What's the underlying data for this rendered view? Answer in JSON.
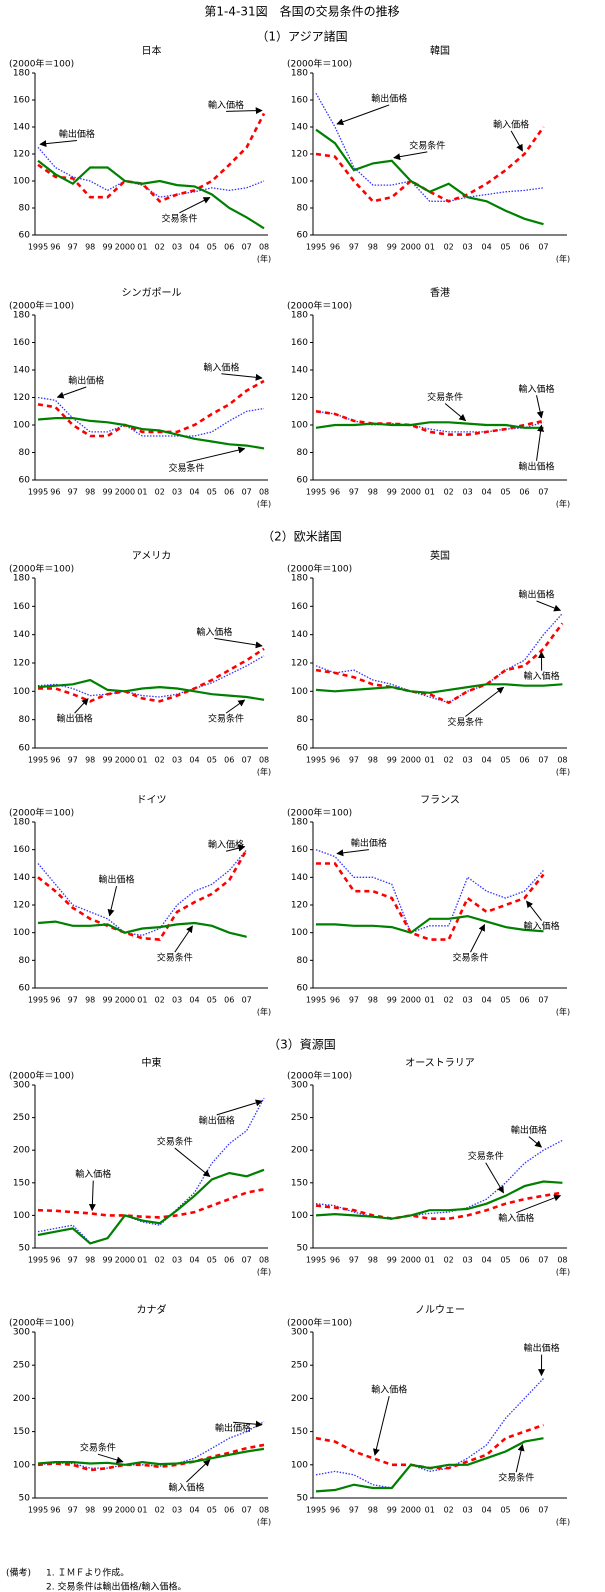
{
  "title": "第1-4-31図　各国の交易条件の推移",
  "sections": [
    "（1）アジア諸国",
    "（2）欧米諸国",
    "（3）資源国"
  ],
  "notes": [
    "(備考)",
    "1. ＩＭＦより作成。",
    "2. 交易条件は輸出価格/輸入価格。"
  ],
  "chart_data": [
    {
      "type": "line",
      "title": "日本",
      "y_label": "(2000年＝100)",
      "x_unit": "(年)",
      "categories": [
        "1995",
        "96",
        "97",
        "98",
        "99",
        "2000",
        "01",
        "02",
        "03",
        "04",
        "05",
        "06",
        "07",
        "08"
      ],
      "ylim": [
        60,
        180
      ],
      "yticks": [
        60,
        80,
        100,
        120,
        140,
        160,
        180
      ],
      "series": [
        {
          "name": "輸出価格",
          "color": "#3333ff",
          "style": "dotted",
          "values": [
            125,
            110,
            103,
            100,
            93,
            100,
            97,
            88,
            90,
            92,
            95,
            93,
            95,
            100
          ]
        },
        {
          "name": "輸入価格",
          "color": "#ff0000",
          "style": "dashed",
          "values": [
            112,
            103,
            102,
            88,
            88,
            100,
            98,
            85,
            90,
            93,
            100,
            112,
            125,
            150
          ]
        },
        {
          "name": "交易条件",
          "color": "#008000",
          "style": "solid",
          "values": [
            115,
            105,
            98,
            110,
            110,
            100,
            98,
            100,
            97,
            96,
            90,
            80,
            73,
            65
          ]
        }
      ]
    },
    {
      "type": "line",
      "title": "韓国",
      "y_label": "(2000年＝100)",
      "x_unit": "(年)",
      "categories": [
        "1995",
        "96",
        "97",
        "98",
        "99",
        "2000",
        "01",
        "02",
        "03",
        "04",
        "05",
        "06",
        "07"
      ],
      "ylim": [
        60,
        180
      ],
      "yticks": [
        60,
        80,
        100,
        120,
        140,
        160,
        180
      ],
      "series": [
        {
          "name": "輸出価格",
          "color": "#3333ff",
          "style": "dotted",
          "values": [
            165,
            140,
            110,
            97,
            97,
            100,
            85,
            85,
            88,
            90,
            92,
            93,
            95
          ]
        },
        {
          "name": "輸入価格",
          "color": "#ff0000",
          "style": "dashed",
          "values": [
            120,
            118,
            100,
            85,
            88,
            100,
            92,
            85,
            90,
            98,
            108,
            120,
            140
          ]
        },
        {
          "name": "交易条件",
          "color": "#008000",
          "style": "solid",
          "values": [
            138,
            128,
            108,
            113,
            115,
            100,
            92,
            98,
            88,
            85,
            78,
            72,
            68
          ]
        }
      ]
    },
    {
      "type": "line",
      "title": "シンガポール",
      "y_label": "(2000年＝100)",
      "x_unit": "(年)",
      "categories": [
        "1995",
        "96",
        "97",
        "98",
        "99",
        "2000",
        "01",
        "02",
        "03",
        "04",
        "05",
        "06",
        "07",
        "08"
      ],
      "ylim": [
        60,
        180
      ],
      "yticks": [
        60,
        80,
        100,
        120,
        140,
        160,
        180
      ],
      "series": [
        {
          "name": "輸出価格",
          "color": "#3333ff",
          "style": "dotted",
          "values": [
            120,
            118,
            105,
            95,
            95,
            100,
            92,
            92,
            92,
            92,
            95,
            103,
            110,
            112
          ]
        },
        {
          "name": "輸入価格",
          "color": "#ff0000",
          "style": "dashed",
          "values": [
            115,
            113,
            100,
            92,
            92,
            100,
            95,
            95,
            95,
            100,
            108,
            115,
            125,
            132
          ]
        },
        {
          "name": "交易条件",
          "color": "#008000",
          "style": "solid",
          "values": [
            104,
            105,
            105,
            103,
            102,
            100,
            97,
            96,
            93,
            90,
            88,
            86,
            85,
            83
          ]
        }
      ]
    },
    {
      "type": "line",
      "title": "香港",
      "y_label": "(2000年＝100)",
      "x_unit": "(年)",
      "categories": [
        "1995",
        "96",
        "97",
        "98",
        "99",
        "2000",
        "01",
        "02",
        "03",
        "04",
        "05",
        "06",
        "07"
      ],
      "ylim": [
        60,
        180
      ],
      "yticks": [
        60,
        80,
        100,
        120,
        140,
        160,
        180
      ],
      "series": [
        {
          "name": "輸出価格",
          "color": "#3333ff",
          "style": "dotted",
          "values": [
            110,
            108,
            103,
            100,
            101,
            100,
            97,
            95,
            95,
            95,
            97,
            98,
            102
          ]
        },
        {
          "name": "輸入価格",
          "color": "#ff0000",
          "style": "dashed",
          "values": [
            110,
            108,
            103,
            101,
            101,
            100,
            95,
            93,
            93,
            95,
            97,
            100,
            103
          ]
        },
        {
          "name": "交易条件",
          "color": "#008000",
          "style": "solid",
          "values": [
            98,
            100,
            100,
            101,
            100,
            100,
            102,
            102,
            101,
            100,
            100,
            98,
            98
          ]
        }
      ]
    },
    {
      "type": "line",
      "title": "アメリカ",
      "y_label": "(2000年＝100)",
      "x_unit": "(年)",
      "categories": [
        "1995",
        "96",
        "97",
        "98",
        "99",
        "2000",
        "01",
        "02",
        "03",
        "04",
        "05",
        "06",
        "07",
        "08"
      ],
      "ylim": [
        60,
        180
      ],
      "yticks": [
        60,
        80,
        100,
        120,
        140,
        160,
        180
      ],
      "series": [
        {
          "name": "輸出価格",
          "color": "#3333ff",
          "style": "dotted",
          "values": [
            104,
            105,
            102,
            97,
            98,
            100,
            97,
            96,
            98,
            102,
            106,
            112,
            118,
            125
          ]
        },
        {
          "name": "輸入価格",
          "color": "#ff0000",
          "style": "dashed",
          "values": [
            102,
            102,
            98,
            93,
            98,
            100,
            95,
            93,
            97,
            102,
            108,
            115,
            122,
            130
          ]
        },
        {
          "name": "交易条件",
          "color": "#008000",
          "style": "solid",
          "values": [
            103,
            104,
            105,
            108,
            101,
            100,
            102,
            103,
            102,
            100,
            98,
            97,
            96,
            94
          ]
        }
      ]
    },
    {
      "type": "line",
      "title": "英国",
      "y_label": "(2000年＝100)",
      "x_unit": "(年)",
      "categories": [
        "1995",
        "96",
        "97",
        "98",
        "99",
        "2000",
        "01",
        "02",
        "03",
        "04",
        "05",
        "06",
        "07",
        "08"
      ],
      "ylim": [
        60,
        180
      ],
      "yticks": [
        60,
        80,
        100,
        120,
        140,
        160,
        180
      ],
      "series": [
        {
          "name": "輸出価格",
          "color": "#3333ff",
          "style": "dotted",
          "values": [
            118,
            113,
            115,
            108,
            105,
            100,
            96,
            92,
            100,
            105,
            115,
            122,
            140,
            155
          ]
        },
        {
          "name": "輸入価格",
          "color": "#ff0000",
          "style": "dashed",
          "values": [
            115,
            113,
            110,
            105,
            103,
            100,
            98,
            92,
            100,
            105,
            115,
            118,
            130,
            148
          ]
        },
        {
          "name": "交易条件",
          "color": "#008000",
          "style": "solid",
          "values": [
            101,
            100,
            101,
            102,
            103,
            100,
            99,
            101,
            103,
            105,
            105,
            104,
            104,
            105
          ]
        }
      ]
    },
    {
      "type": "line",
      "title": "ドイツ",
      "y_label": "(2000年＝100)",
      "x_unit": "(年)",
      "categories": [
        "1995",
        "96",
        "97",
        "98",
        "99",
        "2000",
        "01",
        "02",
        "03",
        "04",
        "05",
        "06",
        "07"
      ],
      "ylim": [
        60,
        180
      ],
      "yticks": [
        60,
        80,
        100,
        120,
        140,
        160,
        180
      ],
      "series": [
        {
          "name": "輸出価格",
          "color": "#3333ff",
          "style": "dotted",
          "values": [
            150,
            135,
            120,
            115,
            110,
            100,
            98,
            103,
            120,
            130,
            135,
            145,
            160
          ]
        },
        {
          "name": "輸入価格",
          "color": "#ff0000",
          "style": "dashed",
          "values": [
            140,
            130,
            118,
            110,
            105,
            100,
            96,
            95,
            115,
            122,
            128,
            138,
            160
          ]
        },
        {
          "name": "交易条件",
          "color": "#008000",
          "style": "solid",
          "values": [
            107,
            108,
            105,
            105,
            106,
            100,
            103,
            104,
            106,
            107,
            105,
            100,
            97
          ]
        }
      ]
    },
    {
      "type": "line",
      "title": "フランス",
      "y_label": "(2000年＝100)",
      "x_unit": "(年)",
      "categories": [
        "1995",
        "96",
        "97",
        "98",
        "99",
        "2000",
        "01",
        "02",
        "03",
        "04",
        "05",
        "06",
        "07"
      ],
      "ylim": [
        60,
        180
      ],
      "yticks": [
        60,
        80,
        100,
        120,
        140,
        160,
        180
      ],
      "series": [
        {
          "name": "輸出価格",
          "color": "#3333ff",
          "style": "dotted",
          "values": [
            160,
            155,
            140,
            140,
            135,
            100,
            105,
            105,
            140,
            130,
            125,
            130,
            145
          ]
        },
        {
          "name": "輸入価格",
          "color": "#ff0000",
          "style": "dashed",
          "values": [
            150,
            150,
            130,
            130,
            125,
            100,
            95,
            95,
            125,
            115,
            120,
            125,
            142
          ]
        },
        {
          "name": "交易条件",
          "color": "#008000",
          "style": "solid",
          "values": [
            106,
            106,
            105,
            105,
            104,
            100,
            110,
            110,
            112,
            108,
            104,
            102,
            101
          ]
        }
      ]
    },
    {
      "type": "line",
      "title": "中東",
      "y_label": "(2000年＝100)",
      "x_unit": "(年)",
      "categories": [
        "1995",
        "96",
        "97",
        "98",
        "99",
        "2000",
        "01",
        "02",
        "03",
        "04",
        "05",
        "06",
        "07",
        "08"
      ],
      "ylim": [
        50,
        300
      ],
      "yticks": [
        50,
        100,
        150,
        200,
        250,
        300
      ],
      "series": [
        {
          "name": "輸出価格",
          "color": "#3333ff",
          "style": "dotted",
          "values": [
            75,
            80,
            85,
            58,
            65,
            100,
            90,
            85,
            110,
            135,
            180,
            210,
            230,
            280
          ]
        },
        {
          "name": "輸入価格",
          "color": "#ff0000",
          "style": "dashed",
          "values": [
            108,
            107,
            105,
            103,
            100,
            100,
            98,
            97,
            100,
            105,
            115,
            125,
            135,
            140
          ]
        },
        {
          "name": "交易条件",
          "color": "#008000",
          "style": "solid",
          "values": [
            70,
            75,
            80,
            57,
            65,
            100,
            92,
            88,
            108,
            130,
            155,
            165,
            160,
            170
          ]
        }
      ]
    },
    {
      "type": "line",
      "title": "オーストラリア",
      "y_label": "(2000年＝100)",
      "x_unit": "(年)",
      "categories": [
        "1995",
        "96",
        "97",
        "98",
        "99",
        "2000",
        "01",
        "02",
        "03",
        "04",
        "05",
        "06",
        "07",
        "08"
      ],
      "ylim": [
        50,
        300
      ],
      "yticks": [
        50,
        100,
        150,
        200,
        250,
        300
      ],
      "series": [
        {
          "name": "輸出価格",
          "color": "#3333ff",
          "style": "dotted",
          "values": [
            118,
            115,
            105,
            98,
            95,
            100,
            103,
            105,
            112,
            125,
            150,
            180,
            200,
            215
          ]
        },
        {
          "name": "輸入価格",
          "color": "#ff0000",
          "style": "dashed",
          "values": [
            115,
            112,
            108,
            100,
            95,
            100,
            95,
            95,
            100,
            108,
            118,
            125,
            130,
            135
          ]
        },
        {
          "name": "交易条件",
          "color": "#008000",
          "style": "solid",
          "values": [
            100,
            102,
            100,
            98,
            95,
            100,
            108,
            108,
            110,
            118,
            130,
            145,
            152,
            150
          ]
        }
      ]
    },
    {
      "type": "line",
      "title": "カナダ",
      "y_label": "(2000年＝100)",
      "x_unit": "(年)",
      "categories": [
        "1995",
        "96",
        "97",
        "98",
        "99",
        "2000",
        "01",
        "02",
        "03",
        "04",
        "05",
        "06",
        "07",
        "08"
      ],
      "ylim": [
        50,
        300
      ],
      "yticks": [
        50,
        100,
        150,
        200,
        250,
        300
      ],
      "series": [
        {
          "name": "輸出価格",
          "color": "#3333ff",
          "style": "dotted",
          "values": [
            100,
            103,
            102,
            95,
            95,
            100,
            100,
            98,
            102,
            110,
            125,
            140,
            150,
            165
          ]
        },
        {
          "name": "輸入価格",
          "color": "#ff0000",
          "style": "dashed",
          "values": [
            100,
            102,
            100,
            92,
            95,
            100,
            100,
            97,
            100,
            105,
            112,
            118,
            125,
            130
          ]
        },
        {
          "name": "交易条件",
          "color": "#008000",
          "style": "solid",
          "values": [
            102,
            104,
            104,
            102,
            103,
            100,
            104,
            101,
            102,
            105,
            110,
            115,
            120,
            124
          ]
        }
      ]
    },
    {
      "type": "line",
      "title": "ノルウェー",
      "y_label": "(2000年＝100)",
      "x_unit": "(年)",
      "categories": [
        "1995",
        "96",
        "97",
        "98",
        "99",
        "2000",
        "01",
        "02",
        "03",
        "04",
        "05",
        "06",
        "07"
      ],
      "ylim": [
        50,
        300
      ],
      "yticks": [
        50,
        100,
        150,
        200,
        250,
        300
      ],
      "series": [
        {
          "name": "輸出価格",
          "color": "#3333ff",
          "style": "dotted",
          "values": [
            85,
            90,
            85,
            70,
            65,
            100,
            90,
            95,
            110,
            130,
            170,
            200,
            230
          ]
        },
        {
          "name": "輸入価格",
          "color": "#ff0000",
          "style": "dashed",
          "values": [
            140,
            135,
            120,
            110,
            100,
            100,
            95,
            95,
            105,
            115,
            140,
            150,
            160
          ]
        },
        {
          "name": "交易条件",
          "color": "#008000",
          "style": "solid",
          "values": [
            60,
            62,
            70,
            65,
            65,
            100,
            95,
            100,
            100,
            110,
            120,
            135,
            140
          ]
        }
      ]
    }
  ]
}
